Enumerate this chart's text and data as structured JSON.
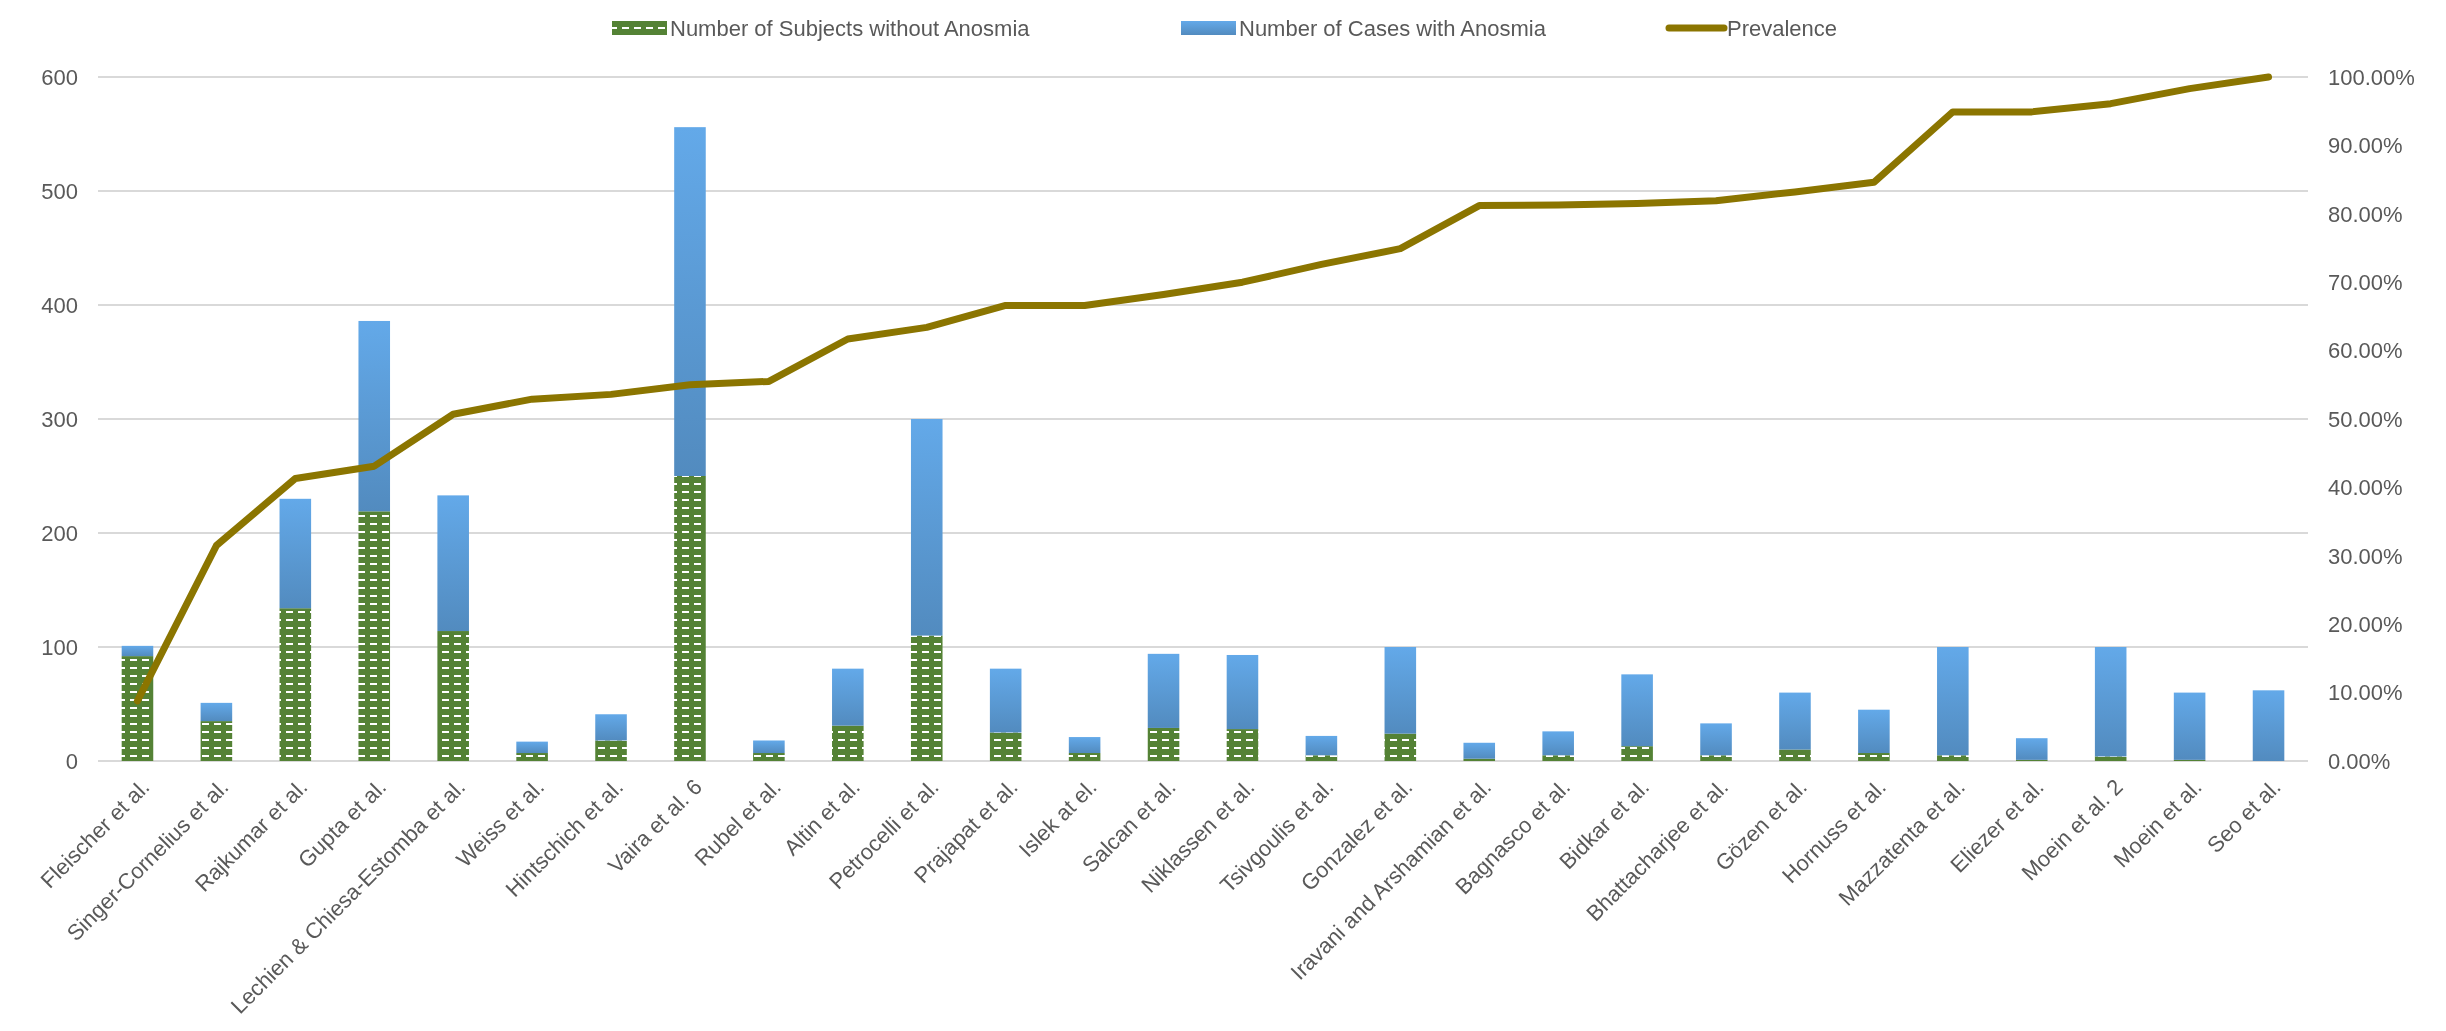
{
  "chart_data": {
    "type": "bar",
    "stacked": true,
    "categories": [
      "Fleischer et al.",
      "Singer-Cornelius et al.",
      "Rajkumar et al.",
      "Gupta et al.",
      "Lechien & Chiesa-Estomba et al.",
      "Weiss et al.",
      "Hintschich et al.",
      "Vaira et al. 6",
      "Rubel et al.",
      "Altin et al.",
      "Petrocelli et al.",
      "Prajapat et al.",
      "Islek at el.",
      "Salcan et al.",
      "Niklassen et al.",
      "Tsivgoulis et al.",
      "Gonzalez et al.",
      "Iravani and Arshamian et al.",
      "Bagnasco et al.",
      "Bidkar et al.",
      "Bhattacharjee et al.",
      "Gözen et al.",
      "Hornuss et al.",
      "Mazzatenta et al.",
      "Eliezer et al.",
      "Moein et al. 2",
      "Moein et al.",
      "Seo et al."
    ],
    "series": [
      {
        "name": "Number of Subjects without Anosmia",
        "color": "#548235",
        "values": [
          92,
          35,
          134,
          219,
          114,
          7,
          18,
          250,
          7,
          31,
          110,
          25,
          7,
          29,
          28,
          5,
          24,
          2,
          5,
          13,
          5,
          10,
          7,
          5,
          1,
          4,
          1,
          0
        ]
      },
      {
        "name": "Number of Cases with Anosmia",
        "color": "#5b9bd5",
        "values": [
          9,
          16,
          96,
          167,
          119,
          10,
          23,
          306,
          11,
          50,
          190,
          56,
          14,
          65,
          65,
          17,
          76,
          14,
          21,
          63,
          28,
          50,
          38,
          95,
          19,
          96,
          59,
          62
        ]
      },
      {
        "name": "Prevalence",
        "type": "line",
        "axis": "y2",
        "color": "#8b7500",
        "values": [
          8.8,
          31.5,
          41.3,
          43.1,
          50.7,
          52.9,
          53.6,
          55.0,
          55.5,
          61.7,
          63.4,
          66.6,
          66.6,
          68.2,
          70.0,
          72.6,
          74.9,
          81.2,
          81.3,
          81.5,
          81.9,
          83.2,
          84.6,
          94.9,
          94.9,
          96.1,
          98.3,
          100
        ]
      }
    ],
    "ylim": [
      0,
      600
    ],
    "yticks": [
      0,
      100,
      200,
      300,
      400,
      500,
      600
    ],
    "y2lim": [
      0,
      100
    ],
    "y2ticks": [
      {
        "value": 0,
        "label": "0.00%"
      },
      {
        "value": 10,
        "label": "10.00%"
      },
      {
        "value": 20,
        "label": "20.00%"
      },
      {
        "value": 30,
        "label": "30.00%"
      },
      {
        "value": 40,
        "label": "40.00%"
      },
      {
        "value": 50,
        "label": "50.00%"
      },
      {
        "value": 60,
        "label": "60.00%"
      },
      {
        "value": 70,
        "label": "70.00%"
      },
      {
        "value": 80,
        "label": "80.00%"
      },
      {
        "value": 90,
        "label": "90.00%"
      },
      {
        "value": 100,
        "label": "100.00%"
      }
    ],
    "grid": "y",
    "legend": "top",
    "marker": "none",
    "line_style": "solid"
  }
}
